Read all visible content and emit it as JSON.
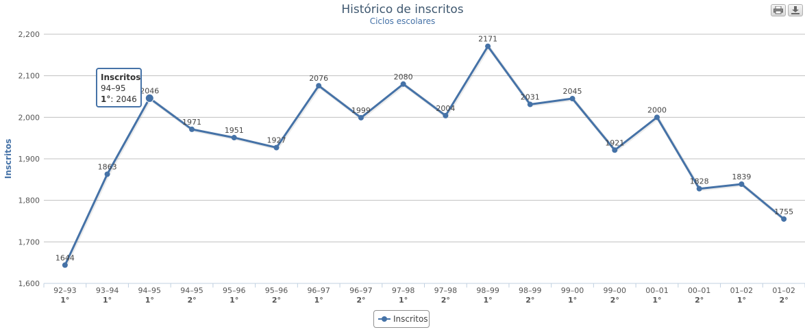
{
  "title": "Histórico de inscritos",
  "subtitle": "Ciclos escolares",
  "toolbar": {
    "print_icon": "printer-icon",
    "download_icon": "download-icon"
  },
  "colors": {
    "series": "#4572a7",
    "grid": "#c0c0c0",
    "axis": "#c0d0e0",
    "title": "#3e576f"
  },
  "chart_data": {
    "type": "line",
    "title": "Histórico de inscritos",
    "subtitle": "Ciclos escolares",
    "xlabel": "",
    "ylabel": "Inscritos",
    "ylim": [
      1600,
      2200
    ],
    "yticks": [
      "1,600",
      "1,700",
      "1,800",
      "1,900",
      "2,000",
      "2,100",
      "2,200"
    ],
    "yticks_values": [
      1600,
      1700,
      1800,
      1900,
      2000,
      2100,
      2200
    ],
    "grid": true,
    "legend": "bottom-center",
    "categories": [
      [
        "92–93",
        "1°"
      ],
      [
        "93–94",
        "1°"
      ],
      [
        "94–95",
        "1°"
      ],
      [
        "94–95",
        "2°"
      ],
      [
        "95–96",
        "1°"
      ],
      [
        "95–96",
        "2°"
      ],
      [
        "96–97",
        "1°"
      ],
      [
        "96–97",
        "2°"
      ],
      [
        "97–98",
        "1°"
      ],
      [
        "97–98",
        "2°"
      ],
      [
        "98–99",
        "1°"
      ],
      [
        "98–99",
        "2°"
      ],
      [
        "99–00",
        "1°"
      ],
      [
        "99–00",
        "2°"
      ],
      [
        "00–01",
        "1°"
      ],
      [
        "00–01",
        "2°"
      ],
      [
        "01–02",
        "1°"
      ],
      [
        "01–02",
        "2°"
      ]
    ],
    "series": [
      {
        "name": "Inscritos",
        "values": [
          1644,
          1863,
          2046,
          1971,
          1951,
          1927,
          2076,
          1999,
          2080,
          2004,
          2171,
          2031,
          2045,
          1921,
          2000,
          1828,
          1839,
          1755
        ]
      }
    ]
  },
  "legend": {
    "label": "Inscritos"
  },
  "tooltip": {
    "series": "Inscritos",
    "category": "94–95",
    "period": "1°",
    "value_text": ": 2046"
  }
}
